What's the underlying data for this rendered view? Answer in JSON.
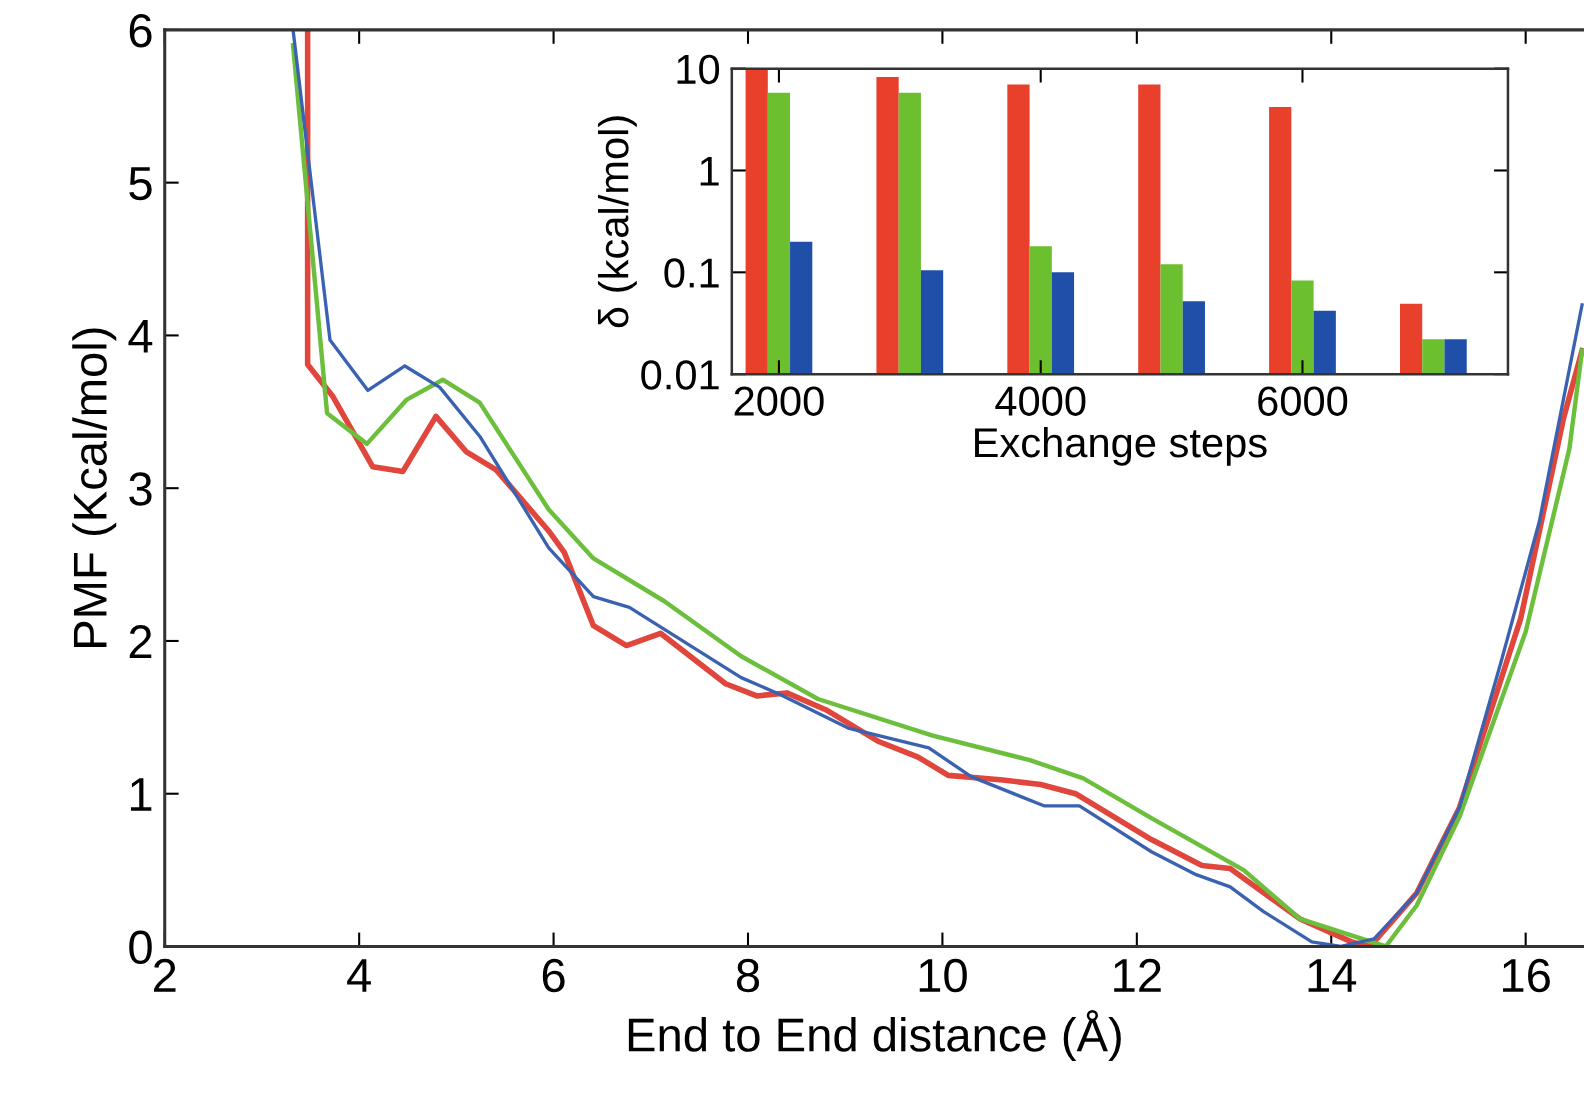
{
  "chart_data": [
    {
      "type": "line",
      "xlabel": "End to End distance (Å)",
      "ylabel": "PMF (Kcal/mol)",
      "xlim": [
        2,
        16.6
      ],
      "ylim": [
        0,
        6
      ],
      "xticks": [
        2,
        4,
        6,
        8,
        10,
        12,
        14,
        16
      ],
      "yticks": [
        0,
        1,
        2,
        3,
        4,
        5,
        6
      ],
      "grid": false,
      "legend": false,
      "series": [
        {
          "color": "#e0463c",
          "x": [
            3.47,
            3.47,
            3.73,
            4.14,
            4.45,
            4.79,
            5.1,
            5.41,
            5.95,
            6.11,
            6.41,
            6.75,
            7.1,
            7.77,
            8.09,
            8.4,
            8.8,
            9.35,
            9.75,
            10.06,
            10.62,
            11.01,
            11.37,
            12.15,
            12.67,
            12.96,
            13.68,
            14.21,
            14.4,
            14.88,
            15.32,
            15.95,
            16.39,
            16.58
          ],
          "values": [
            6,
            3.81,
            3.6,
            3.14,
            3.11,
            3.47,
            3.24,
            3.12,
            2.72,
            2.58,
            2.1,
            1.97,
            2.05,
            1.72,
            1.64,
            1.66,
            1.55,
            1.34,
            1.24,
            1.12,
            1.09,
            1.06,
            1.0,
            0.7,
            0.53,
            0.51,
            0.18,
            0.03,
            0,
            0.35,
            0.91,
            2.15,
            3.46,
            3.9
          ]
        },
        {
          "color": "#6cbf3c",
          "x": [
            3.32,
            3.67,
            4.08,
            4.49,
            4.86,
            5.24,
            5.95,
            6.41,
            7.14,
            7.93,
            8.72,
            9.9,
            10.9,
            11.45,
            12.15,
            13.1,
            13.68,
            14.56,
            14.88,
            15.32,
            16.0,
            16.45,
            16.58
          ],
          "values": [
            5.9,
            3.49,
            3.29,
            3.58,
            3.71,
            3.56,
            2.86,
            2.54,
            2.26,
            1.9,
            1.62,
            1.38,
            1.22,
            1.1,
            0.84,
            0.5,
            0.18,
            0,
            0.27,
            0.85,
            2.06,
            3.26,
            3.9
          ]
        },
        {
          "color": "#3a62b0",
          "x": [
            3.32,
            3.7,
            4.09,
            4.47,
            4.83,
            5.24,
            5.95,
            6.41,
            6.78,
            7.93,
            8.33,
            9.03,
            9.86,
            10.3,
            11.05,
            11.41,
            12.15,
            12.61,
            12.96,
            13.3,
            13.8,
            14.1,
            14.44,
            14.88,
            15.32,
            15.75,
            16.14,
            16.58
          ],
          "values": [
            6,
            3.97,
            3.64,
            3.8,
            3.66,
            3.34,
            2.61,
            2.29,
            2.22,
            1.76,
            1.65,
            1.43,
            1.3,
            1.11,
            0.92,
            0.92,
            0.62,
            0.47,
            0.39,
            0.23,
            0.03,
            0,
            0.05,
            0.35,
            0.91,
            1.87,
            2.78,
            4.2
          ]
        }
      ]
    },
    {
      "type": "bar",
      "xlabel": "Exchange steps",
      "ylabel": "δ (kcal/mol)",
      "log": true,
      "x": [
        2000,
        3000,
        4000,
        5000,
        6000,
        7000
      ],
      "xlim": [
        1640,
        7570
      ],
      "ylim": [
        0.01,
        10
      ],
      "xticks": [
        2000,
        4000,
        6000
      ],
      "yticks": [
        {
          "value": 0.01,
          "label": "0.01"
        },
        {
          "value": 0.1,
          "label": "0.1"
        },
        1,
        10
      ],
      "grid": false,
      "legend": false,
      "series": [
        {
          "color": "#e8402a",
          "values": [
            10,
            8.3,
            7.0,
            7.0,
            4.2,
            0.049
          ]
        },
        {
          "color": "#6cbf2e",
          "values": [
            5.8,
            5.8,
            0.18,
            0.12,
            0.083,
            0.022
          ]
        },
        {
          "color": "#1f4fa8",
          "values": [
            0.2,
            0.105,
            0.1,
            0.052,
            0.042,
            0.022
          ]
        }
      ]
    }
  ]
}
